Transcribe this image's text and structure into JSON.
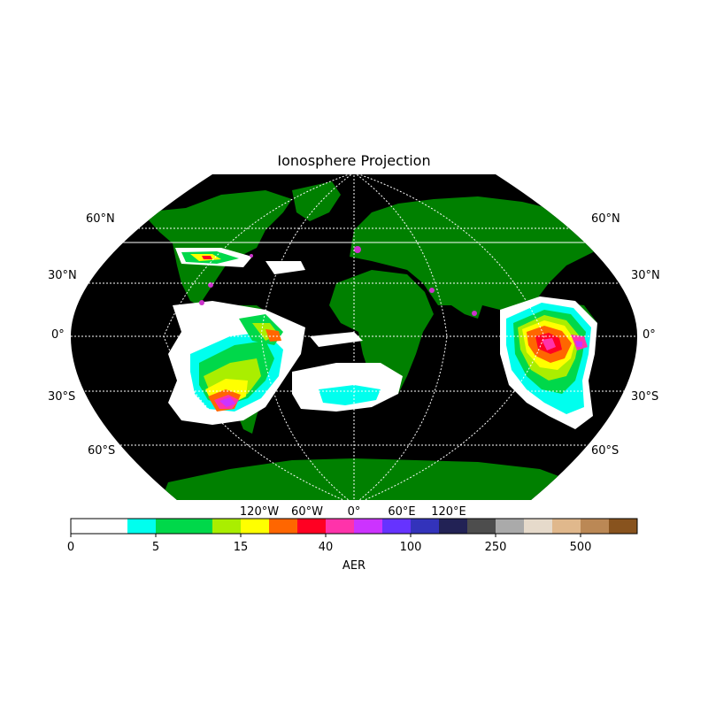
{
  "title": "Ionosphere Projection",
  "map": {
    "projection": "Robinson",
    "ocean_color": "#000000",
    "land_color": "#008000",
    "grid_color": "#ffffff",
    "coastline_color": "#000000",
    "lat_labels": [
      "60°N",
      "30°N",
      "0°",
      "30°S",
      "60°S"
    ],
    "lon_labels": [
      "120°W",
      "60°W",
      "0°",
      "60°E",
      "120°E"
    ]
  },
  "colorbar": {
    "label": "AER",
    "tick_labels": [
      "0",
      "5",
      "15",
      "40",
      "100",
      "250",
      "500"
    ],
    "colors": [
      "#ffffff",
      "#ffffff",
      "#00ffee",
      "#00d84a",
      "#00d84a",
      "#aaee00",
      "#ffff00",
      "#ff6600",
      "#ff0022",
      "#ff33aa",
      "#cc33ff",
      "#6633ff",
      "#3333bb",
      "#222255",
      "#4d4d4d",
      "#aaaaaa",
      "#e6dacb",
      "#e0b88c",
      "#bb8855",
      "#88531e"
    ]
  },
  "legend_icons": [
    "magenta-marker-icon"
  ]
}
